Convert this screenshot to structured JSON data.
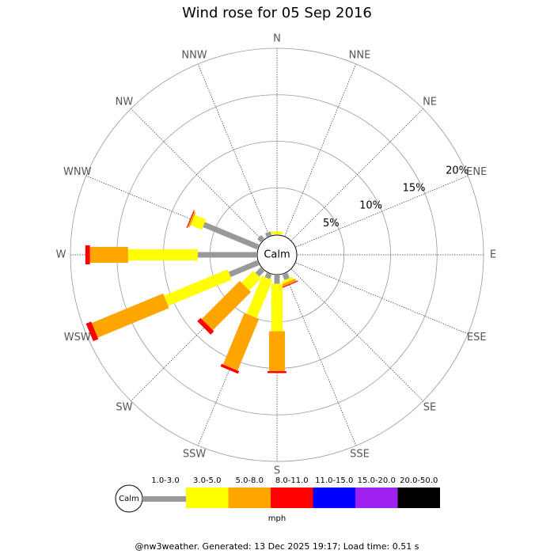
{
  "chart_data": {
    "type": "windrose",
    "title": "Wind rose for 05 Sep 2016",
    "calm_label": "Calm",
    "directions": [
      "N",
      "NNE",
      "NE",
      "ENE",
      "E",
      "ESE",
      "SE",
      "SSE",
      "S",
      "SSW",
      "SW",
      "WSW",
      "W",
      "WNW",
      "NW",
      "NNW"
    ],
    "rlim": [
      0,
      20
    ],
    "rticks": [
      {
        "value": 5,
        "label": "5%"
      },
      {
        "value": 10,
        "label": "10%"
      },
      {
        "value": 15,
        "label": "15%"
      },
      {
        "value": 20,
        "label": "20%"
      }
    ],
    "series": [
      {
        "name": "1.0-3.0",
        "color": "#999999",
        "values": [
          0,
          0,
          0,
          0,
          0,
          0,
          0,
          0.6,
          0.9,
          0.5,
          0.8,
          3.3,
          6.3,
          6.3,
          0.5,
          0.4
        ]
      },
      {
        "name": "3.0-5.0",
        "color": "#ffff00",
        "values": [
          0.3,
          0,
          0,
          0,
          0,
          0,
          0,
          0.3,
          5.1,
          4.4,
          1.8,
          7.4,
          7.5,
          1.3,
          0,
          0
        ]
      },
      {
        "name": "5.0-8.0",
        "color": "#ffa500",
        "values": [
          0,
          0,
          0,
          0,
          0,
          0,
          0,
          0.3,
          4.3,
          6.0,
          5.8,
          8.3,
          4.1,
          0.2,
          0,
          0
        ]
      },
      {
        "name": "8.0-11.0",
        "color": "#ff0000",
        "values": [
          0,
          0,
          0,
          0,
          0,
          0,
          0,
          0.1,
          0.2,
          0.3,
          0.5,
          0.6,
          0.5,
          0.1,
          0,
          0
        ]
      },
      {
        "name": "11.0-15.0",
        "color": "#0000ff",
        "values": [
          0,
          0,
          0,
          0,
          0,
          0,
          0,
          0,
          0,
          0,
          0,
          0,
          0,
          0,
          0,
          0
        ]
      },
      {
        "name": "15.0-20.0",
        "color": "#a020f0",
        "values": [
          0,
          0,
          0,
          0,
          0,
          0,
          0,
          0,
          0,
          0,
          0,
          0,
          0,
          0,
          0,
          0
        ]
      },
      {
        "name": "20.0-50.0",
        "color": "#000000",
        "values": [
          0,
          0,
          0,
          0,
          0,
          0,
          0,
          0,
          0,
          0,
          0,
          0,
          0,
          0,
          0,
          0
        ]
      }
    ],
    "units": "mph",
    "footer": "@nw3weather. Generated: 13 Dec 2025 19:17; Load time: 0.51 s"
  }
}
